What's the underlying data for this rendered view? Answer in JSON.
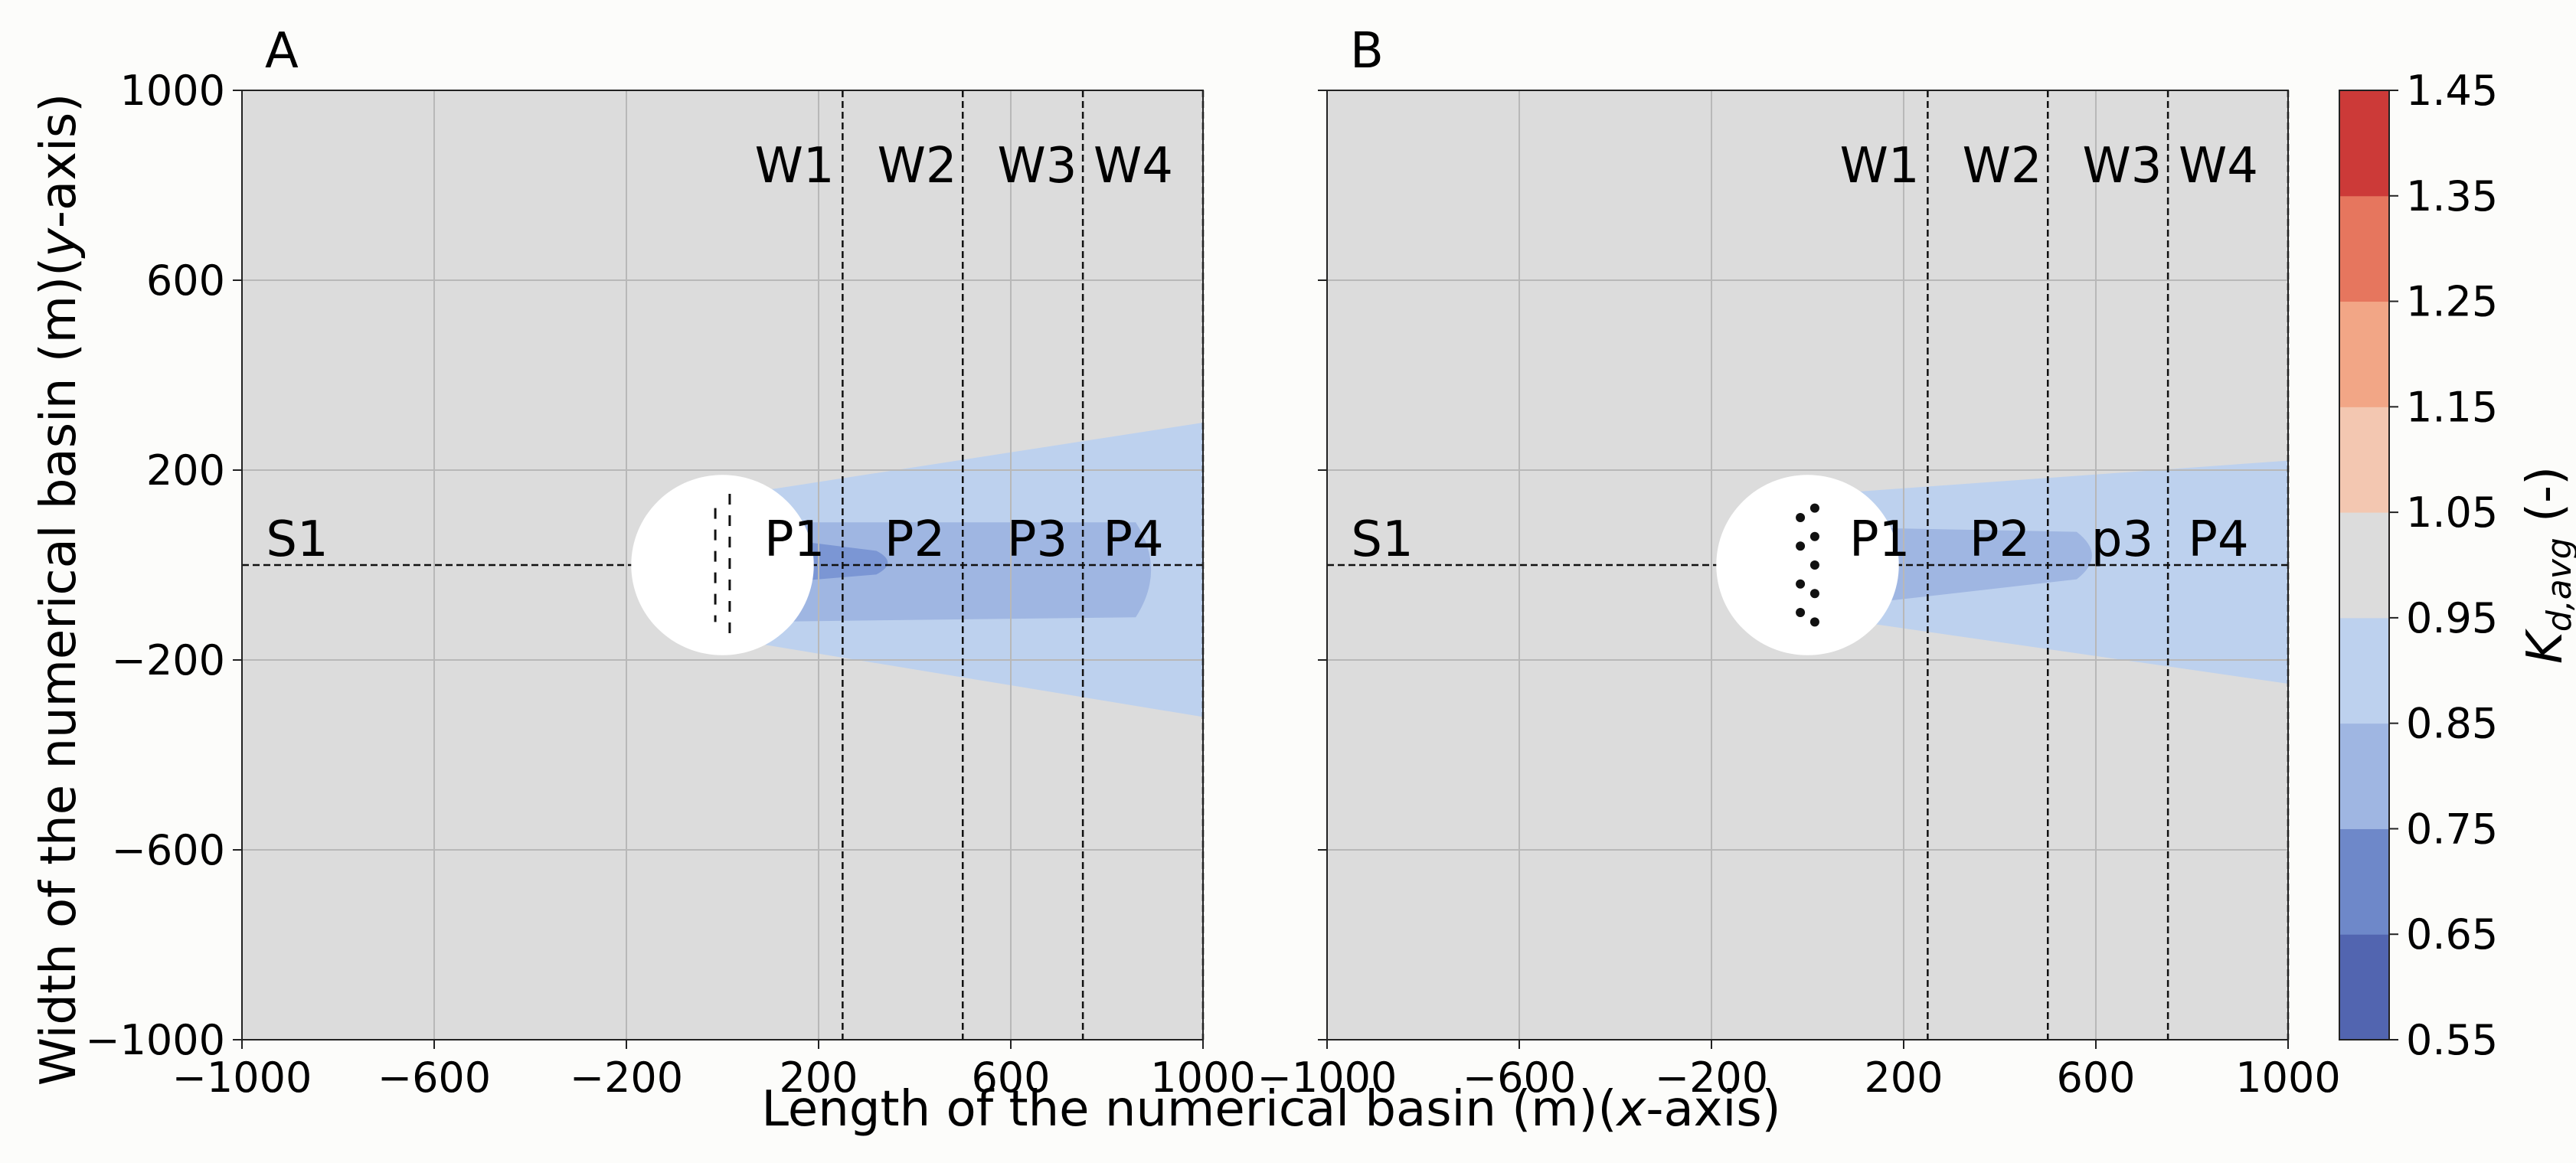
{
  "figure": {
    "xlabel_prefix": "Length of the numerical basin (m)(",
    "xlabel_italic": "x",
    "xlabel_suffix": "-axis)",
    "ylabel_prefix": "Width of the numerical basin (m)(",
    "ylabel_italic": "y",
    "ylabel_suffix": "-axis)"
  },
  "colors": {
    "background_contour": "#dcdcdc",
    "wake_outer": "#bdd1ee",
    "wake_mid": "#9fb6e2",
    "wake_inner": "#7b96d4",
    "device": "#ffffff",
    "grid": "#b8b8b8",
    "lines": "#111111"
  },
  "chart_data": [
    {
      "type": "contour",
      "panel_label": "A",
      "xlim": [
        -1000,
        1000
      ],
      "ylim": [
        -1000,
        1000
      ],
      "xticks": [
        -1000,
        -600,
        -200,
        200,
        600,
        1000
      ],
      "xtick_labels": [
        "−1000",
        "−600",
        "−200",
        "200",
        "600",
        "1000"
      ],
      "yticks": [
        -1000,
        -600,
        -200,
        200,
        600,
        1000
      ],
      "ytick_labels": [
        "−1000",
        "−600",
        "−200",
        "200",
        "600",
        "1000"
      ],
      "grid": true,
      "device": {
        "center": [
          0,
          0
        ],
        "radius": 190,
        "layout": "two staggered dashed rows"
      },
      "vertical_lines_x": [
        250,
        500,
        750,
        1000
      ],
      "vertical_line_labels": [
        "W1",
        "W2",
        "W3",
        "W4"
      ],
      "horizontal_line_y": 0,
      "horizontal_line_label": "S1",
      "point_labels": [
        "P1",
        "P2",
        "P3",
        "P4"
      ],
      "wake_region_outer": {
        "from_x": 40,
        "to_x": 1000,
        "y_top": [
          150,
          300
        ],
        "y_bottom": [
          -160,
          -320
        ]
      },
      "wake_region_mid": {
        "from_x": 40,
        "to_x": 860,
        "y_top": [
          90,
          90
        ],
        "y_bottom": [
          -120,
          -110
        ]
      },
      "wake_region_inner": {
        "from_x": 80,
        "to_x": 320,
        "y_top": [
          60,
          30
        ],
        "y_bottom": [
          -40,
          -20
        ]
      }
    },
    {
      "type": "contour",
      "panel_label": "B",
      "xlim": [
        -1000,
        1000
      ],
      "ylim": [
        -1000,
        1000
      ],
      "xticks": [
        -1000,
        -600,
        -200,
        200,
        600,
        1000
      ],
      "xtick_labels": [
        "−1000",
        "−600",
        "−200",
        "200",
        "600",
        "1000"
      ],
      "yticks": [
        -1000,
        -600,
        -200,
        200,
        600,
        1000
      ],
      "grid": true,
      "device": {
        "center": [
          0,
          0
        ],
        "radius": 190,
        "layout": "two staggered dotted rows"
      },
      "vertical_lines_x": [
        250,
        500,
        750,
        1000
      ],
      "vertical_line_labels": [
        "W1",
        "W2",
        "W3",
        "W4"
      ],
      "horizontal_line_y": 0,
      "horizontal_line_label": "S1",
      "point_labels": [
        "P1",
        "P2",
        "p3",
        "P4"
      ],
      "wake_region_outer": {
        "from_x": 40,
        "to_x": 1000,
        "y_top": [
          150,
          220
        ],
        "y_bottom": [
          -110,
          -250
        ]
      },
      "wake_region_mid": {
        "from_x": 40,
        "to_x": 560,
        "y_top": [
          80,
          70
        ],
        "y_bottom": [
          -90,
          -30
        ]
      }
    }
  ],
  "colorbar": {
    "label_main": "K",
    "label_sub": "d,avg",
    "label_suffix": " (-)",
    "levels": [
      0.55,
      0.65,
      0.75,
      0.85,
      0.95,
      1.05,
      1.15,
      1.25,
      1.35,
      1.45
    ],
    "tick_labels": [
      "0.55",
      "0.65",
      "0.75",
      "0.85",
      "0.95",
      "1.05",
      "1.15",
      "1.25",
      "1.35",
      "1.45"
    ],
    "colors": [
      "#5265b0",
      "#6e88c9",
      "#9fb6e2",
      "#bdd1ee",
      "#dcdcdc",
      "#f3c7b1",
      "#f2a686",
      "#e6765e",
      "#cc3a38"
    ]
  }
}
